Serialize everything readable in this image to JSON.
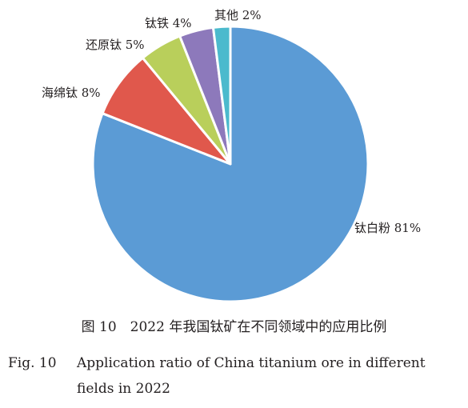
{
  "chart_data": {
    "type": "pie",
    "title": "",
    "slices": [
      {
        "label": "钛白粉",
        "value": 81,
        "text": "钛白粉 81%",
        "color": "#5b9bd5"
      },
      {
        "label": "海绵钛",
        "value": 8,
        "text": "海绵钛 8%",
        "color": "#e0584c"
      },
      {
        "label": "还原钛",
        "value": 5,
        "text": "还原钛 5%",
        "color": "#b9cf5b"
      },
      {
        "label": "钛铁",
        "value": 4,
        "text": "钛铁 4%",
        "color": "#8d79bb"
      },
      {
        "label": "其他",
        "value": 2,
        "text": "其他 2%",
        "color": "#4bbacd"
      }
    ]
  },
  "caption": {
    "cn": "图 10　2022 年我国钛矿在不同领域中的应用比例",
    "en_label": "Fig. 10",
    "en_line1": "Application ratio of China titanium ore in different",
    "en_line2": "fields in 2022"
  }
}
